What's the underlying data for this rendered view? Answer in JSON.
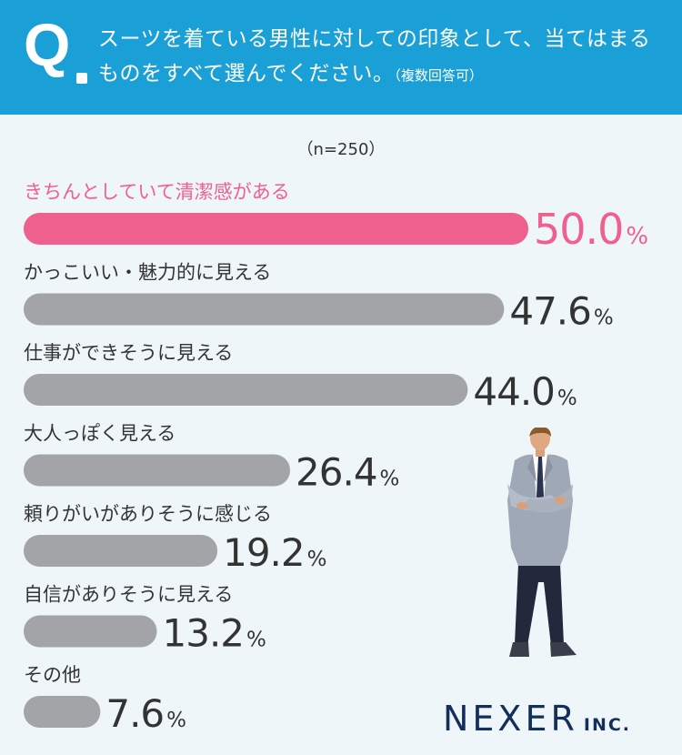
{
  "question": {
    "mark": "Q",
    "text": "スーツを着ている男性に対しての印象として、当てはまるものをすべて選んでください。",
    "note": "（複数回答可）"
  },
  "sample": "（n=250）",
  "colors": {
    "header": "#1aa0d6",
    "highlight": "#f0608f",
    "bar": "#a3a4a8",
    "value_text": "#333333",
    "label_text": "#333333"
  },
  "chart_data": {
    "type": "bar",
    "orientation": "horizontal",
    "unit": "%",
    "categories": [
      "きちんとしていて清潔感がある",
      "かっこいい・魅力的に見える",
      "仕事ができそうに見える",
      "大人っぽく見える",
      "頼りがいがありそうに感じる",
      "自信がありそうに見える",
      "その他"
    ],
    "values": [
      50.0,
      47.6,
      44.0,
      26.4,
      19.2,
      13.2,
      7.6
    ],
    "value_labels": [
      "50.0",
      "47.6",
      "44.0",
      "26.4",
      "19.2",
      "13.2",
      "7.6"
    ],
    "highlight_index": 0
  },
  "logo": {
    "main": "NEXER",
    "sub": "INC."
  }
}
